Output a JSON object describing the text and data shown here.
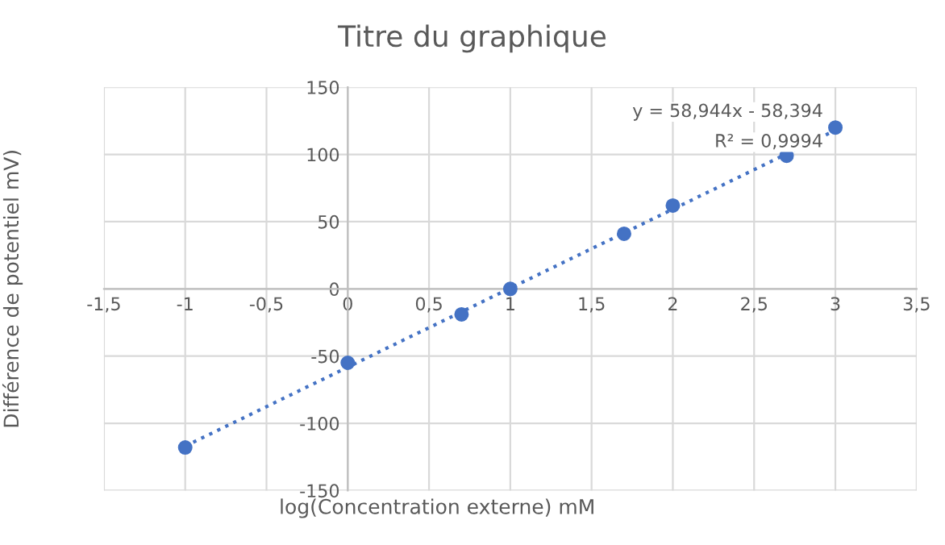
{
  "chart_data": {
    "type": "scatter",
    "title": "Titre du graphique",
    "xlabel": "log(Concentration externe) mM",
    "ylabel": "Différence de potentiel mV)",
    "series": [
      {
        "color": "#4472c4",
        "marker": "circle",
        "x": [
          -1,
          0,
          0.7,
          1,
          1.7,
          2,
          2.7,
          3
        ],
        "values": [
          -118,
          -55,
          -19,
          0,
          41,
          62,
          99,
          120
        ]
      },
      {
        "type": "line",
        "color": "#4472c4",
        "marker": "none",
        "line_style": "dotted",
        "x": [
          -1,
          3
        ],
        "values": [
          -117,
          118
        ]
      }
    ],
    "annotations": [
      "y = 58,944x - 58,394",
      "R² = 0,9994"
    ],
    "xlim": [
      -1.5,
      3.5
    ],
    "ylim": [
      -150,
      150
    ],
    "xticks": [
      {
        "value": -1.5,
        "label": "-1,5"
      },
      -1,
      {
        "value": -0.5,
        "label": "-0,5"
      },
      0,
      {
        "value": 0.5,
        "label": "0,5"
      },
      1,
      {
        "value": 1.5,
        "label": "1,5"
      },
      2,
      {
        "value": 2.5,
        "label": "2,5"
      },
      3,
      {
        "value": 3.5,
        "label": "3,5"
      }
    ],
    "yticks": [
      -150,
      -100,
      -50,
      0,
      50,
      100,
      150
    ],
    "grid": true,
    "legend": false
  }
}
